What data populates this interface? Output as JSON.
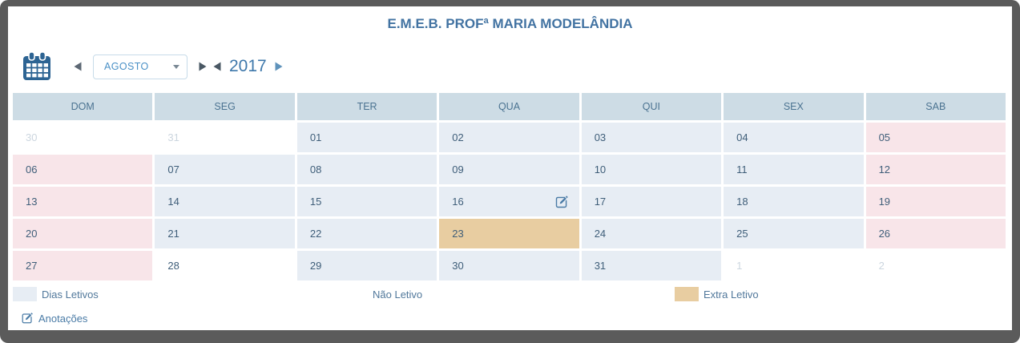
{
  "window": {
    "title": "E.M.E.B. PROFª MARIA MODELÂNDIA"
  },
  "toolbar": {
    "month": "AGOSTO",
    "year": "2017"
  },
  "calendar": {
    "weekdays": [
      "DOM",
      "SEG",
      "TER",
      "QUA",
      "QUI",
      "SEX",
      "SAB"
    ],
    "days": [
      {
        "label": "30",
        "type": "other-month"
      },
      {
        "label": "31",
        "type": "other-month"
      },
      {
        "label": "01",
        "type": "letivo"
      },
      {
        "label": "02",
        "type": "letivo"
      },
      {
        "label": "03",
        "type": "letivo"
      },
      {
        "label": "04",
        "type": "letivo"
      },
      {
        "label": "05",
        "type": "weekend"
      },
      {
        "label": "06",
        "type": "weekend"
      },
      {
        "label": "07",
        "type": "letivo"
      },
      {
        "label": "08",
        "type": "letivo"
      },
      {
        "label": "09",
        "type": "letivo"
      },
      {
        "label": "10",
        "type": "letivo"
      },
      {
        "label": "11",
        "type": "letivo"
      },
      {
        "label": "12",
        "type": "weekend"
      },
      {
        "label": "13",
        "type": "weekend"
      },
      {
        "label": "14",
        "type": "letivo"
      },
      {
        "label": "15",
        "type": "letivo"
      },
      {
        "label": "16",
        "type": "letivo",
        "note_icon": true
      },
      {
        "label": "17",
        "type": "letivo"
      },
      {
        "label": "18",
        "type": "letivo"
      },
      {
        "label": "19",
        "type": "weekend"
      },
      {
        "label": "20",
        "type": "weekend"
      },
      {
        "label": "21",
        "type": "letivo"
      },
      {
        "label": "22",
        "type": "letivo"
      },
      {
        "label": "23",
        "type": "extra"
      },
      {
        "label": "24",
        "type": "letivo"
      },
      {
        "label": "25",
        "type": "letivo"
      },
      {
        "label": "26",
        "type": "weekend"
      },
      {
        "label": "27",
        "type": "weekend"
      },
      {
        "label": "28",
        "type": "nao-letivo"
      },
      {
        "label": "29",
        "type": "letivo"
      },
      {
        "label": "30",
        "type": "letivo"
      },
      {
        "label": "31",
        "type": "letivo"
      },
      {
        "label": "1",
        "type": "other-month"
      },
      {
        "label": "2",
        "type": "other-month"
      }
    ]
  },
  "legend": [
    {
      "label": "Dias Letivos",
      "swatch": "#e7edf4"
    },
    {
      "label": "Não Letivo",
      "swatch": "#ffffff"
    },
    {
      "label": "Extra Letivo",
      "swatch": "#e8cda1"
    }
  ],
  "annotations": {
    "label": "Anotações"
  },
  "icons": {
    "calendar": "calendar-icon",
    "prev_month": "left-arrow-icon",
    "next_month": "right-arrow-icon",
    "prev_year": "left-arrow-icon",
    "next_year": "right-arrow-icon",
    "dropdown": "caret-down-icon",
    "note": "pencil-square-icon"
  },
  "colors": {
    "frame": "#5b5b5b",
    "title_text": "#4273a2",
    "weekday_header_bg": "#cddce5",
    "weekday_header_text": "#4b7391",
    "day_letivo_bg": "#e7edf4",
    "day_weekend_bg": "#f8e5e9",
    "day_extra_bg": "#e8cda1",
    "day_text": "#3f5e79",
    "other_month_text": "#ccd6df",
    "accent_blue": "#4a90c6",
    "icon_blue": "#2d6493"
  }
}
